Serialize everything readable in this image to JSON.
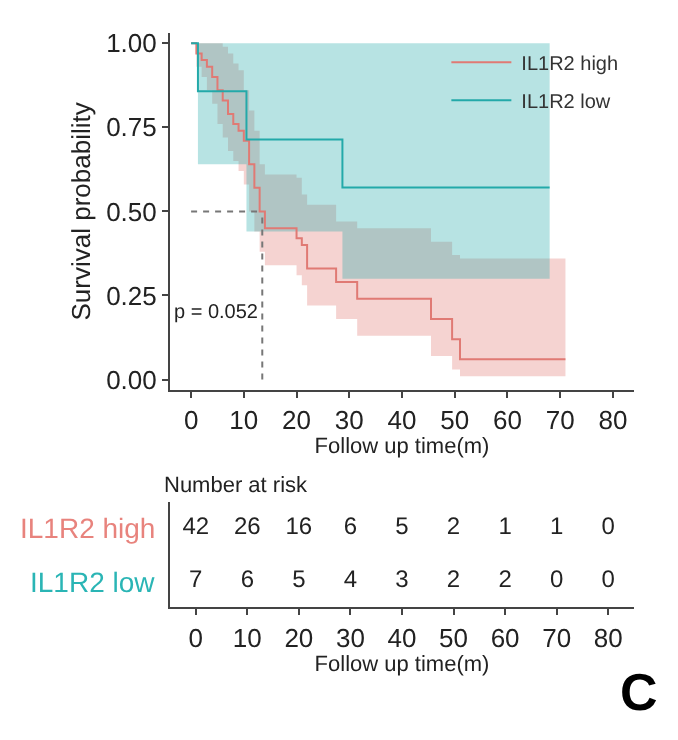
{
  "chart_data": [
    {
      "type": "step",
      "xlabel": "Follow up time(m)",
      "ylabel": "Survival probability",
      "xlim": [
        -4,
        84
      ],
      "xticks": [
        0,
        10,
        20,
        30,
        40,
        50,
        60,
        70,
        80
      ],
      "ylim": [
        -0.03,
        1.03
      ],
      "yticks": [
        {
          "value": 0,
          "label": "0.00"
        },
        {
          "value": 0.25,
          "label": "0.25"
        },
        {
          "value": 0.5,
          "label": "0.50"
        },
        {
          "value": 0.75,
          "label": "0.75"
        },
        {
          "value": 1,
          "label": "1.00"
        }
      ],
      "legend": "top right",
      "line_style": "solid",
      "annotations": [
        "p = 0.052"
      ],
      "ref_lines": [
        {
          "axis": "y",
          "value": 0.5,
          "color": "#777777",
          "line_style": "dotted"
        },
        {
          "axis": "x",
          "value": 13.5,
          "color": "#777777",
          "line_style": "dotted"
        }
      ],
      "series": [
        {
          "name": "IL1R2 high",
          "color": "#e07a74",
          "x": [
            0,
            1,
            2,
            3,
            4,
            5,
            6,
            7,
            8,
            9,
            10,
            11,
            12,
            13,
            14,
            20,
            21,
            22,
            27.5,
            31.5,
            45.5,
            49.5,
            51,
            71
          ],
          "values": [
            1,
            0.97,
            0.95,
            0.93,
            0.9,
            0.86,
            0.83,
            0.79,
            0.76,
            0.74,
            0.71,
            0.64,
            0.57,
            0.5,
            0.45,
            0.42,
            0.4,
            0.33,
            0.29,
            0.24,
            0.18,
            0.12,
            0.06,
            0.06
          ],
          "lower": [
            1,
            0.93,
            0.9,
            0.86,
            0.82,
            0.76,
            0.72,
            0.68,
            0.65,
            0.62,
            0.58,
            0.5,
            0.44,
            0.38,
            0.34,
            0.31,
            0.28,
            0.22,
            0.18,
            0.13,
            0.07,
            0.03,
            0.01,
            0.01
          ],
          "upper": [
            1,
            1,
            1,
            1,
            1,
            1,
            0.99,
            0.97,
            0.94,
            0.92,
            0.86,
            0.8,
            0.74,
            0.64,
            0.61,
            0.6,
            0.55,
            0.52,
            0.47,
            0.45,
            0.41,
            0.37,
            0.36,
            0.36
          ]
        },
        {
          "name": "IL1R2 low",
          "color": "#23a9a9",
          "x": [
            0,
            1.3,
            10.5,
            28.7,
            68
          ],
          "values": [
            1,
            0.857,
            0.714,
            0.571,
            0.571
          ],
          "lower": [
            1,
            0.64,
            0.44,
            0.3,
            0.3
          ],
          "upper": [
            1,
            1,
            1,
            1,
            1
          ]
        }
      ]
    },
    {
      "type": "heatmap",
      "title": "Number at risk",
      "xlabel": "Follow up time(m)",
      "categories": [
        "0",
        "10",
        "20",
        "30",
        "40",
        "50",
        "60",
        "70",
        "80"
      ],
      "y_categories": [
        "IL1R2 high",
        "IL1R2 low"
      ],
      "colors": [
        "#e8837d",
        "#2ab5b5"
      ],
      "annotations": [
        "C"
      ],
      "data_labels": true,
      "cells": [
        [
          42,
          26,
          16,
          6,
          5,
          2,
          1,
          1,
          0
        ],
        [
          7,
          6,
          5,
          4,
          3,
          2,
          2,
          0,
          0
        ]
      ]
    }
  ]
}
